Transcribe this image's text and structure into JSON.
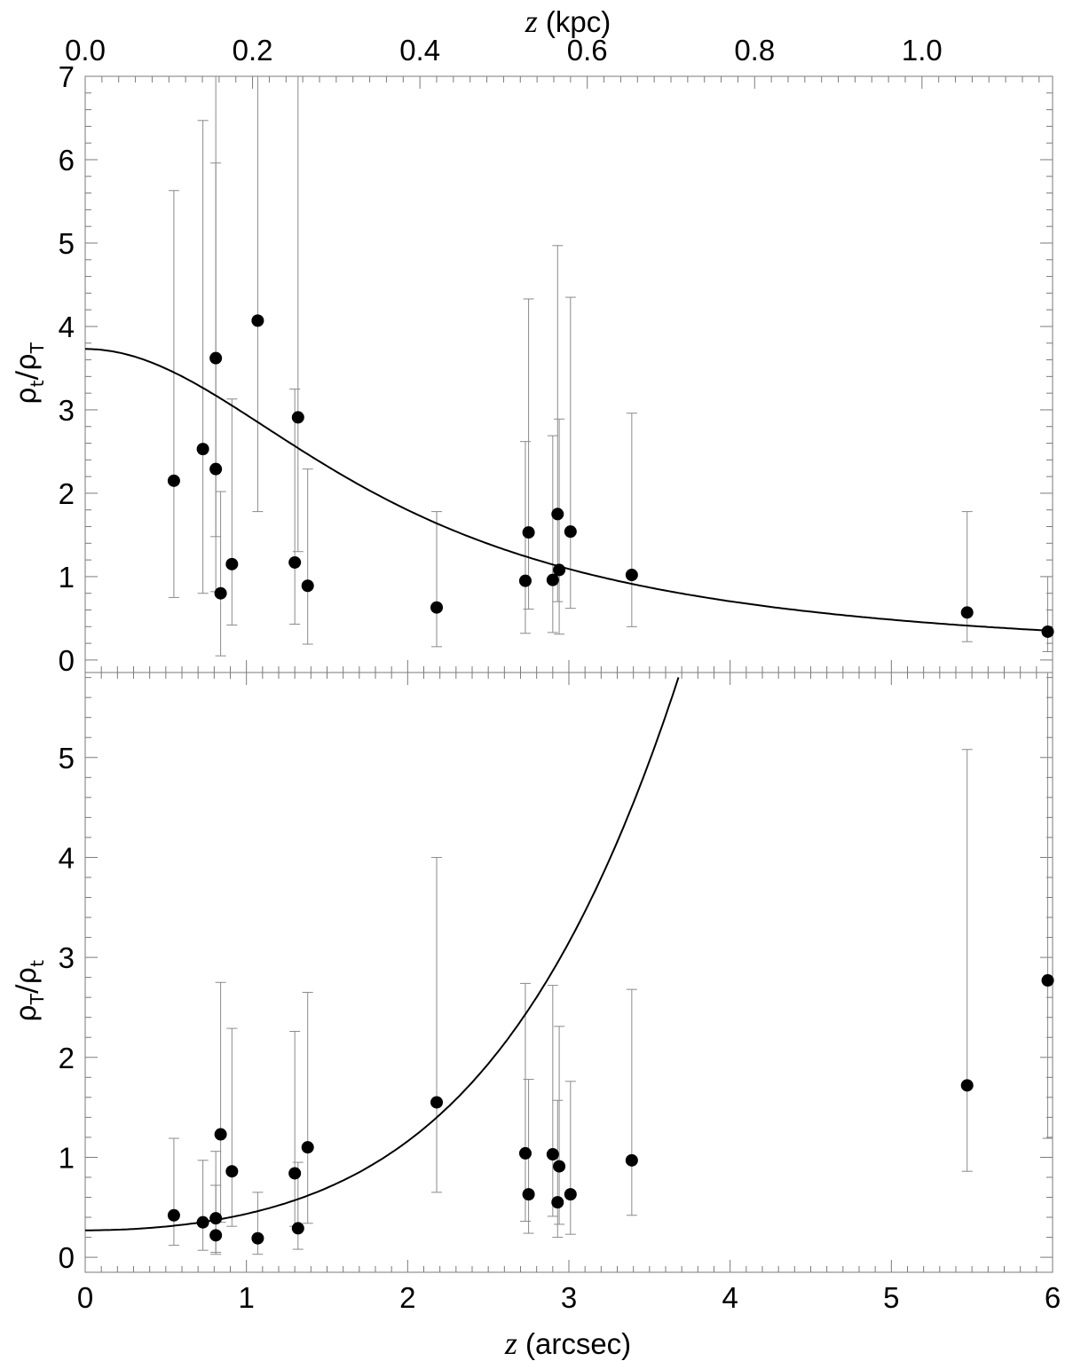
{
  "chart_data": [
    {
      "type": "scatter",
      "panel": "top",
      "ylabel": {
        "rho1": "ρ",
        "sub1": "t",
        "slash": "/",
        "rho2": "ρ",
        "sub2": "T"
      },
      "xlim": [
        0,
        6
      ],
      "ylim": [
        -0.15,
        7.0
      ],
      "yticks": [
        "0",
        "1",
        "2",
        "3",
        "4",
        "5",
        "6",
        "7"
      ],
      "top_axis": {
        "label_var": "z",
        "label_unit": " (kpc)",
        "ticks": [
          {
            "arcsec": 0.0,
            "label": "0.0"
          },
          {
            "arcsec": 1.038,
            "label": "0.2"
          },
          {
            "arcsec": 2.076,
            "label": "0.4"
          },
          {
            "arcsec": 3.114,
            "label": "0.6"
          },
          {
            "arcsec": 4.152,
            "label": "0.8"
          },
          {
            "arcsec": 5.19,
            "label": "1.0"
          }
        ]
      },
      "points": [
        {
          "x": 0.55,
          "y": 2.15,
          "lo": 0.75,
          "hi": 5.63
        },
        {
          "x": 0.73,
          "y": 2.53,
          "lo": 0.8,
          "hi": 6.47
        },
        {
          "x": 0.81,
          "y": 3.62,
          "lo": 1.48,
          "hi": 7.0
        },
        {
          "x": 0.81,
          "y": 2.29,
          "lo": 0.82,
          "hi": 5.96
        },
        {
          "x": 0.84,
          "y": 0.8,
          "lo": 0.05,
          "hi": 2.02
        },
        {
          "x": 0.91,
          "y": 1.15,
          "lo": 0.42,
          "hi": 3.13
        },
        {
          "x": 1.07,
          "y": 4.07,
          "lo": 1.78,
          "hi": 7.0
        },
        {
          "x": 1.3,
          "y": 1.17,
          "lo": 0.43,
          "hi": 3.25
        },
        {
          "x": 1.32,
          "y": 2.91,
          "lo": 1.3,
          "hi": 7.0
        },
        {
          "x": 1.38,
          "y": 0.89,
          "lo": 0.19,
          "hi": 2.29
        },
        {
          "x": 2.18,
          "y": 0.63,
          "lo": 0.16,
          "hi": 1.78
        },
        {
          "x": 2.73,
          "y": 0.95,
          "lo": 0.32,
          "hi": 2.62
        },
        {
          "x": 2.75,
          "y": 1.53,
          "lo": 0.61,
          "hi": 4.33
        },
        {
          "x": 2.9,
          "y": 0.96,
          "lo": 0.33,
          "hi": 2.69
        },
        {
          "x": 2.93,
          "y": 1.75,
          "lo": 0.7,
          "hi": 4.97
        },
        {
          "x": 2.94,
          "y": 1.08,
          "lo": 0.31,
          "hi": 2.89
        },
        {
          "x": 3.01,
          "y": 1.54,
          "lo": 0.62,
          "hi": 4.35
        },
        {
          "x": 3.39,
          "y": 1.02,
          "lo": 0.4,
          "hi": 2.96
        },
        {
          "x": 5.47,
          "y": 0.57,
          "lo": 0.22,
          "hi": 1.78
        },
        {
          "x": 5.97,
          "y": 0.34,
          "lo": 0.1,
          "hi": 1.0
        }
      ],
      "curve": {
        "kind": "lorentzian",
        "amplitude": 3.73,
        "half_width": 1.93
      }
    },
    {
      "type": "scatter",
      "panel": "bottom",
      "ylabel": {
        "rho1": "ρ",
        "sub1": "T",
        "slash": "/",
        "rho2": "ρ",
        "sub2": "t"
      },
      "xlabel": {
        "var": "z",
        "unit": " (arcsec)"
      },
      "xlim": [
        0,
        6
      ],
      "xticks": [
        "0",
        "1",
        "2",
        "3",
        "4",
        "5",
        "6"
      ],
      "ylim": [
        -0.15,
        5.85
      ],
      "yticks": [
        "0",
        "1",
        "2",
        "3",
        "4",
        "5"
      ],
      "points": [
        {
          "x": 0.55,
          "y": 0.42,
          "lo": 0.12,
          "hi": 1.19
        },
        {
          "x": 0.73,
          "y": 0.35,
          "lo": 0.07,
          "hi": 0.97
        },
        {
          "x": 0.81,
          "y": 0.39,
          "lo": 0.05,
          "hi": 1.06
        },
        {
          "x": 0.81,
          "y": 0.22,
          "lo": 0.03,
          "hi": 0.72
        },
        {
          "x": 0.84,
          "y": 1.23,
          "lo": 0.35,
          "hi": 2.75
        },
        {
          "x": 0.91,
          "y": 0.86,
          "lo": 0.31,
          "hi": 2.29
        },
        {
          "x": 1.07,
          "y": 0.19,
          "lo": 0.03,
          "hi": 0.65
        },
        {
          "x": 1.3,
          "y": 0.84,
          "lo": 0.31,
          "hi": 2.26
        },
        {
          "x": 1.32,
          "y": 0.29,
          "lo": 0.08,
          "hi": 0.95
        },
        {
          "x": 1.38,
          "y": 1.1,
          "lo": 0.34,
          "hi": 2.65
        },
        {
          "x": 2.18,
          "y": 1.55,
          "lo": 0.65,
          "hi": 4.0
        },
        {
          "x": 2.73,
          "y": 1.04,
          "lo": 0.36,
          "hi": 2.74
        },
        {
          "x": 2.75,
          "y": 0.63,
          "lo": 0.24,
          "hi": 1.78
        },
        {
          "x": 2.9,
          "y": 1.03,
          "lo": 0.41,
          "hi": 2.72
        },
        {
          "x": 2.93,
          "y": 0.55,
          "lo": 0.2,
          "hi": 1.57
        },
        {
          "x": 2.94,
          "y": 0.91,
          "lo": 0.33,
          "hi": 2.31
        },
        {
          "x": 3.01,
          "y": 0.63,
          "lo": 0.23,
          "hi": 1.76
        },
        {
          "x": 3.39,
          "y": 0.97,
          "lo": 0.42,
          "hi": 2.68
        },
        {
          "x": 5.47,
          "y": 1.72,
          "lo": 0.86,
          "hi": 5.08
        },
        {
          "x": 5.97,
          "y": 2.77,
          "lo": 1.19,
          "hi": 5.85
        }
      ],
      "curve": {
        "kind": "quadratic",
        "base": 0.27,
        "half_width": 1.93
      }
    }
  ]
}
